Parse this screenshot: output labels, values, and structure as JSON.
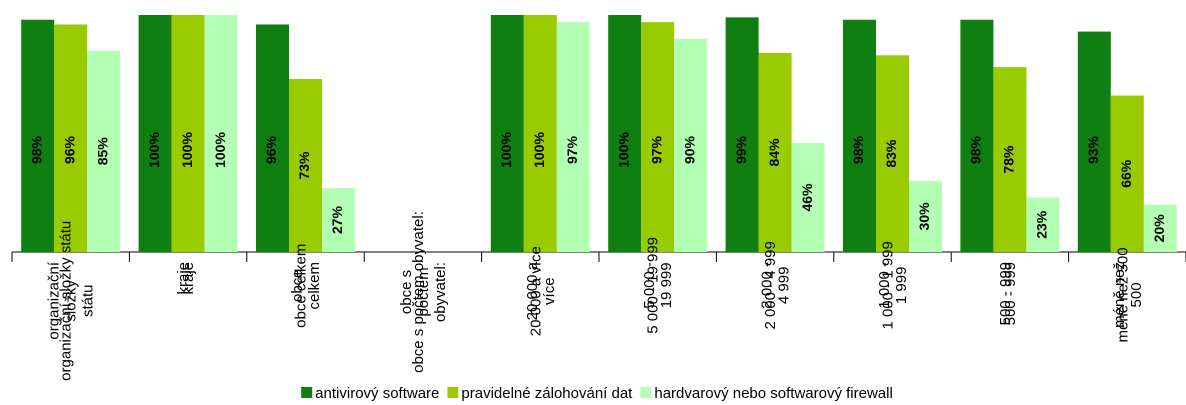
{
  "chart_data": {
    "type": "bar",
    "categories": [
      "organizační\nsložky\nstátu",
      "kraje",
      "obce\ncelkem",
      "obce s\npočtem\nobyvatel:",
      "20 000 a\nvíce",
      "5 000 -\n19 999",
      "2 000 -\n4 999",
      "1 000 -\n1 999",
      "500 - 999",
      "méně než\n500"
    ],
    "ylim": [
      0,
      100
    ],
    "legend": "bottom",
    "series": [
      {
        "name": "antivirový software",
        "color": "#0e7f10",
        "values": [
          98,
          100,
          96,
          null,
          100,
          100,
          99,
          98,
          98,
          93
        ],
        "value_labels": [
          "98%",
          "100%",
          "96%",
          null,
          "100%",
          "100%",
          "99%",
          "98%",
          "98%",
          "93%"
        ]
      },
      {
        "name": "pravidelné zálohování dat",
        "color": "#99cc00",
        "values": [
          96,
          100,
          73,
          null,
          100,
          97,
          84,
          83,
          78,
          66
        ],
        "value_labels": [
          "96%",
          "100%",
          "73%",
          null,
          "100%",
          "97%",
          "84%",
          "83%",
          "78%",
          "66%"
        ]
      },
      {
        "name": "hardvarový nebo softwarový firewall",
        "color": "#b3ffb3",
        "values": [
          85,
          100,
          27,
          null,
          97,
          90,
          46,
          30,
          23,
          20
        ],
        "value_labels": [
          "85%",
          "100%",
          "27%",
          null,
          "97%",
          "90%",
          "46%",
          "30%",
          "23%",
          "20%"
        ]
      }
    ]
  }
}
